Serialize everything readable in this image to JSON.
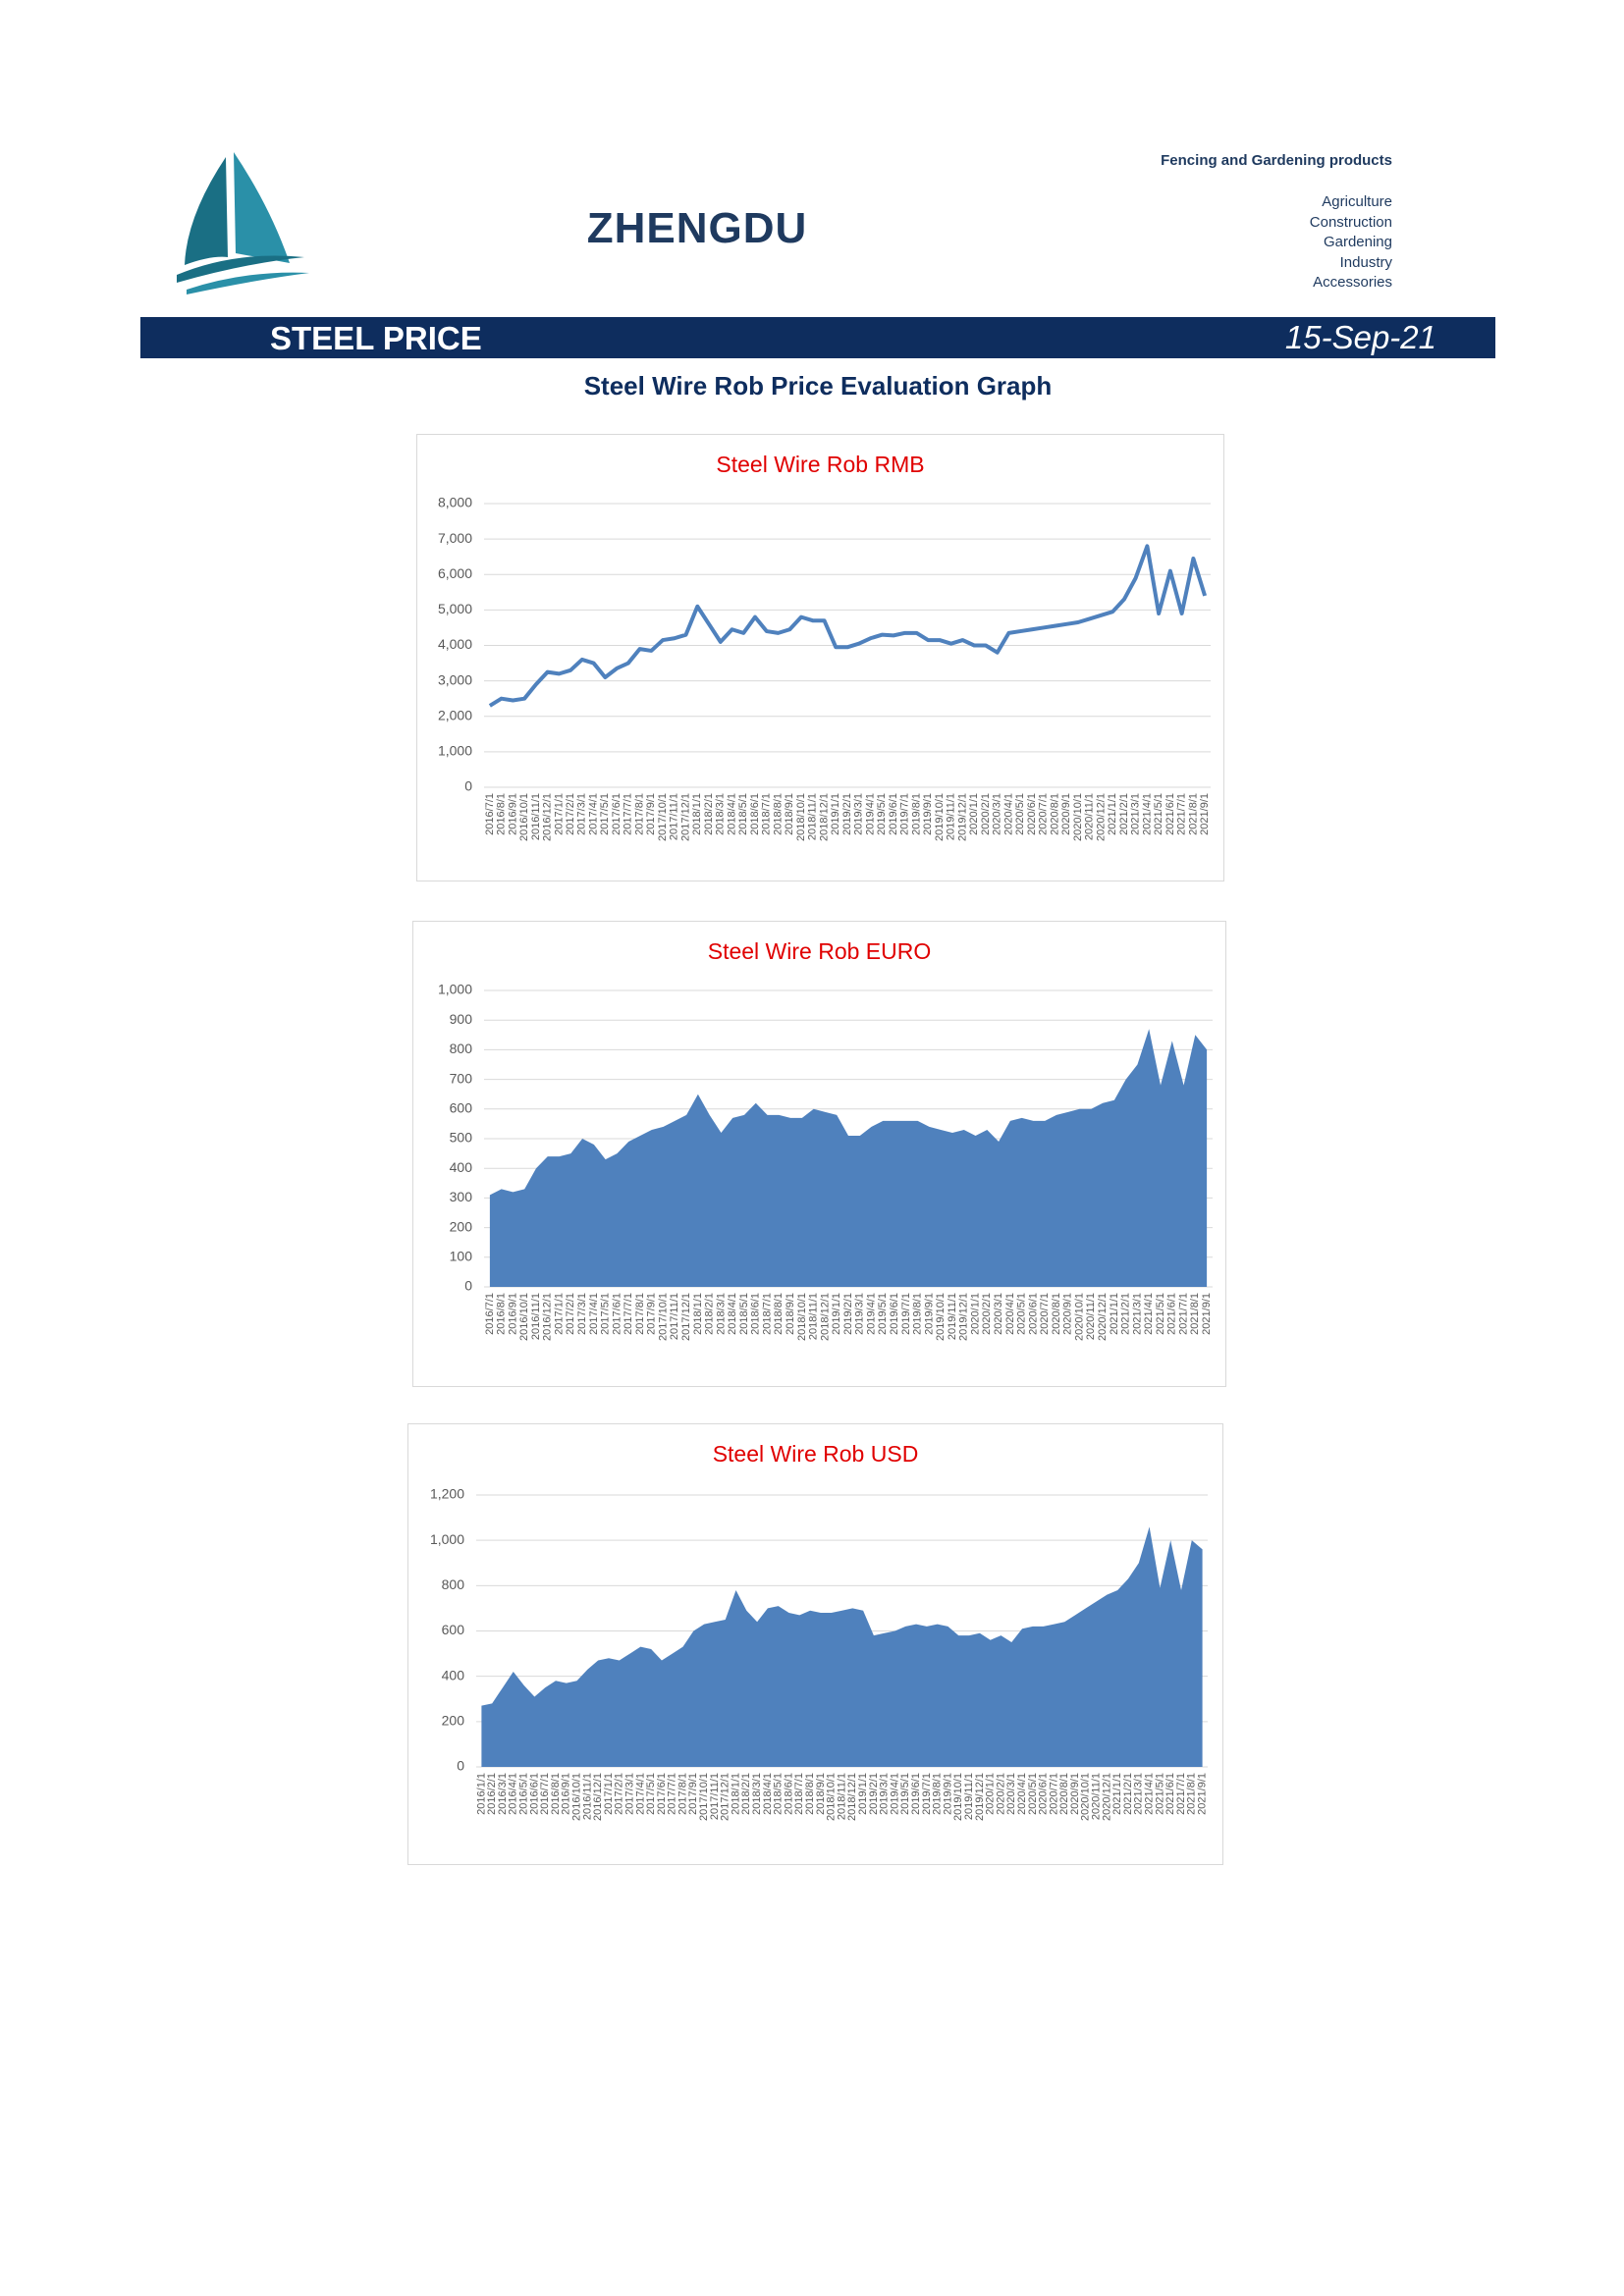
{
  "header": {
    "company": "ZHENGDU",
    "tagline": "Fencing and Gardening products",
    "items": [
      "Agriculture",
      "Construction",
      "Gardening",
      "Industry",
      "Accessories"
    ]
  },
  "banner": {
    "title": "STEEL PRICE",
    "date": "15-Sep-21"
  },
  "subtitle": "Steel Wire Rob Price Evaluation Graph",
  "chart_data": [
    {
      "type": "line",
      "title": "Steel Wire Rob RMB",
      "color": "#4f81bd",
      "grid": true,
      "categories": [
        "2016/7/1",
        "2016/8/1",
        "2016/9/1",
        "2016/10/1",
        "2016/11/1",
        "2016/12/1",
        "2017/1/1",
        "2017/2/1",
        "2017/3/1",
        "2017/4/1",
        "2017/5/1",
        "2017/6/1",
        "2017/7/1",
        "2017/8/1",
        "2017/9/1",
        "2017/10/1",
        "2017/11/1",
        "2017/12/1",
        "2018/1/1",
        "2018/2/1",
        "2018/3/1",
        "2018/4/1",
        "2018/5/1",
        "2018/6/1",
        "2018/7/1",
        "2018/8/1",
        "2018/9/1",
        "2018/10/1",
        "2018/11/1",
        "2018/12/1",
        "2019/1/1",
        "2019/2/1",
        "2019/3/1",
        "2019/4/1",
        "2019/5/1",
        "2019/6/1",
        "2019/7/1",
        "2019/8/1",
        "2019/9/1",
        "2019/10/1",
        "2019/11/1",
        "2019/12/1",
        "2020/1/1",
        "2020/2/1",
        "2020/3/1",
        "2020/4/1",
        "2020/5/1",
        "2020/6/1",
        "2020/7/1",
        "2020/8/1",
        "2020/9/1",
        "2020/10/1",
        "2020/11/1",
        "2020/12/1",
        "2021/1/1",
        "2021/2/1",
        "2021/3/1",
        "2021/4/1",
        "2021/5/1",
        "2021/6/1",
        "2021/7/1",
        "2021/8/1",
        "2021/9/1"
      ],
      "values": [
        2300,
        2500,
        2450,
        2500,
        2900,
        3250,
        3200,
        3300,
        3600,
        3500,
        3100,
        3350,
        3500,
        3900,
        3850,
        4150,
        4200,
        4300,
        5100,
        4600,
        4100,
        4450,
        4350,
        4800,
        4400,
        4350,
        4450,
        4800,
        4700,
        4700,
        3950,
        3950,
        4050,
        4200,
        4300,
        4280,
        4350,
        4350,
        4150,
        4150,
        4050,
        4150,
        4000,
        4000,
        3800,
        4350,
        4400,
        4450,
        4500,
        4550,
        4600,
        4650,
        4750,
        4850,
        4950,
        5300,
        5900,
        6800,
        4900,
        6100,
        4900,
        6450,
        5400
      ],
      "ylim": [
        0,
        8000
      ],
      "yticks": [
        0,
        {
          "value": 1000,
          "label": "1,000"
        },
        {
          "value": 2000,
          "label": "2,000"
        },
        {
          "value": 3000,
          "label": "3,000"
        },
        {
          "value": 4000,
          "label": "4,000"
        },
        {
          "value": 5000,
          "label": "5,000"
        },
        {
          "value": 6000,
          "label": "6,000"
        },
        {
          "value": 7000,
          "label": "7,000"
        },
        {
          "value": 8000,
          "label": "8,000"
        }
      ]
    },
    {
      "type": "area",
      "title": "Steel Wire Rob EURO",
      "color": "#4f81bd",
      "grid": true,
      "categories": [
        "2016/7/1",
        "2016/8/1",
        "2016/9/1",
        "2016/10/1",
        "2016/11/1",
        "2016/12/1",
        "2017/1/1",
        "2017/2/1",
        "2017/3/1",
        "2017/4/1",
        "2017/5/1",
        "2017/6/1",
        "2017/7/1",
        "2017/8/1",
        "2017/9/1",
        "2017/10/1",
        "2017/11/1",
        "2017/12/1",
        "2018/1/1",
        "2018/2/1",
        "2018/3/1",
        "2018/4/1",
        "2018/5/1",
        "2018/6/1",
        "2018/7/1",
        "2018/8/1",
        "2018/9/1",
        "2018/10/1",
        "2018/11/1",
        "2018/12/1",
        "2019/1/1",
        "2019/2/1",
        "2019/3/1",
        "2019/4/1",
        "2019/5/1",
        "2019/6/1",
        "2019/7/1",
        "2019/8/1",
        "2019/9/1",
        "2019/10/1",
        "2019/11/1",
        "2019/12/1",
        "2020/1/1",
        "2020/2/1",
        "2020/3/1",
        "2020/4/1",
        "2020/5/1",
        "2020/6/1",
        "2020/7/1",
        "2020/8/1",
        "2020/9/1",
        "2020/10/1",
        "2020/11/1",
        "2020/12/1",
        "2021/1/1",
        "2021/2/1",
        "2021/3/1",
        "2021/4/1",
        "2021/5/1",
        "2021/6/1",
        "2021/7/1",
        "2021/8/1",
        "2021/9/1"
      ],
      "values": [
        310,
        330,
        320,
        330,
        400,
        440,
        440,
        450,
        500,
        480,
        430,
        450,
        490,
        510,
        530,
        540,
        560,
        580,
        650,
        580,
        520,
        570,
        580,
        620,
        580,
        580,
        570,
        570,
        600,
        590,
        580,
        510,
        510,
        540,
        560,
        560,
        560,
        560,
        540,
        530,
        520,
        530,
        510,
        530,
        490,
        560,
        570,
        560,
        560,
        580,
        590,
        600,
        600,
        620,
        630,
        700,
        750,
        870,
        680,
        830,
        680,
        850,
        800
      ],
      "ylim": [
        0,
        1000
      ],
      "yticks": [
        0,
        100,
        200,
        300,
        400,
        500,
        600,
        700,
        800,
        900,
        {
          "value": 1000,
          "label": "1,000"
        }
      ]
    },
    {
      "type": "area",
      "title": "Steel Wire Rob USD",
      "color": "#4f81bd",
      "grid": true,
      "categories": [
        "2016/1/1",
        "2016/2/1",
        "2016/3/1",
        "2016/4/1",
        "2016/5/1",
        "2016/6/1",
        "2016/7/1",
        "2016/8/1",
        "2016/9/1",
        "2016/10/1",
        "2016/11/1",
        "2016/12/1",
        "2017/1/1",
        "2017/2/1",
        "2017/3/1",
        "2017/4/1",
        "2017/5/1",
        "2017/6/1",
        "2017/7/1",
        "2017/8/1",
        "2017/9/1",
        "2017/10/1",
        "2017/11/1",
        "2017/12/1",
        "2018/1/1",
        "2018/2/1",
        "2018/3/1",
        "2018/4/1",
        "2018/5/1",
        "2018/6/1",
        "2018/7/1",
        "2018/8/1",
        "2018/9/1",
        "2018/10/1",
        "2018/11/1",
        "2018/12/1",
        "2019/1/1",
        "2019/2/1",
        "2019/3/1",
        "2019/4/1",
        "2019/5/1",
        "2019/6/1",
        "2019/7/1",
        "2019/8/1",
        "2019/9/1",
        "2019/10/1",
        "2019/11/1",
        "2019/12/1",
        "2020/1/1",
        "2020/2/1",
        "2020/3/1",
        "2020/4/1",
        "2020/5/1",
        "2020/6/1",
        "2020/7/1",
        "2020/8/1",
        "2020/9/1",
        "2020/10/1",
        "2020/11/1",
        "2020/12/1",
        "2021/1/1",
        "2021/2/1",
        "2021/3/1",
        "2021/4/1",
        "2021/5/1",
        "2021/6/1",
        "2021/7/1",
        "2021/8/1",
        "2021/9/1"
      ],
      "values": [
        270,
        280,
        350,
        420,
        360,
        310,
        350,
        380,
        370,
        380,
        430,
        470,
        480,
        470,
        500,
        530,
        520,
        470,
        500,
        530,
        600,
        630,
        640,
        650,
        780,
        690,
        640,
        700,
        710,
        680,
        670,
        690,
        680,
        680,
        690,
        700,
        690,
        580,
        590,
        600,
        620,
        630,
        620,
        630,
        620,
        580,
        580,
        590,
        560,
        580,
        550,
        610,
        620,
        620,
        630,
        640,
        670,
        700,
        730,
        760,
        780,
        830,
        900,
        1060,
        790,
        1000,
        780,
        1000,
        960
      ],
      "ylim": [
        0,
        1200
      ],
      "yticks": [
        0,
        200,
        400,
        600,
        800,
        {
          "value": 1000,
          "label": "1,000"
        },
        {
          "value": 1200,
          "label": "1,200"
        }
      ]
    }
  ]
}
